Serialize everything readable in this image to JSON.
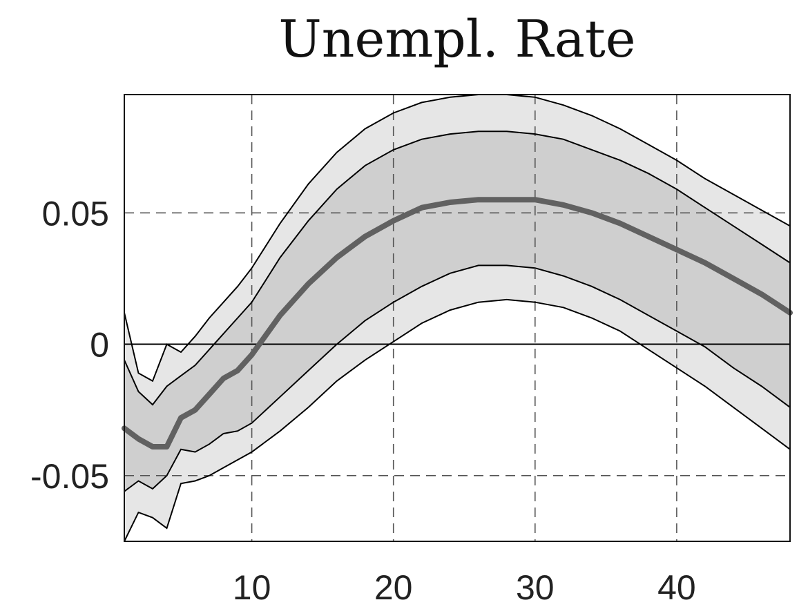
{
  "chart_data": {
    "type": "area",
    "title": "Unempl. Rate",
    "xlabel": "",
    "ylabel": "",
    "xlim": [
      1,
      48
    ],
    "ylim": [
      -0.075,
      0.095
    ],
    "xticks": [
      10,
      20,
      30,
      40
    ],
    "xtick_labels": [
      "10",
      "20",
      "30",
      "40"
    ],
    "yticks": [
      -0.05,
      0,
      0.05
    ],
    "ytick_labels": [
      "-0.05",
      "0",
      "0.05"
    ],
    "grid": true,
    "zero_line": true,
    "colors": {
      "outer_band": "#e6e6e6",
      "inner_band": "#cfcfcf",
      "median": "#616161",
      "edges": "#000000"
    },
    "x": [
      1,
      2,
      3,
      4,
      5,
      6,
      7,
      8,
      9,
      10,
      12,
      14,
      16,
      18,
      20,
      22,
      24,
      26,
      28,
      30,
      32,
      34,
      36,
      38,
      40,
      42,
      44,
      46,
      48
    ],
    "series": [
      {
        "values": [
          0.012,
          -0.011,
          -0.014,
          0.0,
          -0.003,
          0.003,
          0.01,
          0.016,
          0.022,
          0.029,
          0.046,
          0.061,
          0.073,
          0.082,
          0.088,
          0.092,
          0.094,
          0.095,
          0.095,
          0.094,
          0.091,
          0.087,
          0.082,
          0.076,
          0.07,
          0.063,
          0.057,
          0.051,
          0.045
        ]
      },
      {
        "values": [
          -0.006,
          -0.018,
          -0.023,
          -0.016,
          -0.012,
          -0.008,
          -0.002,
          0.004,
          0.01,
          0.016,
          0.033,
          0.047,
          0.059,
          0.068,
          0.074,
          0.078,
          0.08,
          0.081,
          0.081,
          0.08,
          0.078,
          0.074,
          0.07,
          0.065,
          0.059,
          0.052,
          0.045,
          0.038,
          0.031
        ]
      },
      {
        "values": [
          -0.032,
          -0.036,
          -0.039,
          -0.039,
          -0.028,
          -0.025,
          -0.019,
          -0.013,
          -0.01,
          -0.004,
          0.011,
          0.023,
          0.033,
          0.041,
          0.047,
          0.052,
          0.054,
          0.055,
          0.055,
          0.055,
          0.053,
          0.05,
          0.046,
          0.041,
          0.036,
          0.031,
          0.025,
          0.019,
          0.012
        ]
      },
      {
        "values": [
          -0.056,
          -0.052,
          -0.055,
          -0.05,
          -0.04,
          -0.041,
          -0.038,
          -0.034,
          -0.033,
          -0.03,
          -0.02,
          -0.01,
          0.0,
          0.009,
          0.016,
          0.022,
          0.027,
          0.03,
          0.03,
          0.029,
          0.026,
          0.022,
          0.017,
          0.011,
          0.005,
          -0.001,
          -0.009,
          -0.016,
          -0.024
        ]
      },
      {
        "values": [
          -0.075,
          -0.064,
          -0.066,
          -0.07,
          -0.053,
          -0.052,
          -0.05,
          -0.047,
          -0.044,
          -0.041,
          -0.033,
          -0.024,
          -0.014,
          -0.006,
          0.001,
          0.008,
          0.013,
          0.016,
          0.017,
          0.016,
          0.014,
          0.01,
          0.005,
          -0.002,
          -0.009,
          -0.016,
          -0.024,
          -0.032,
          -0.04
        ]
      }
    ]
  }
}
